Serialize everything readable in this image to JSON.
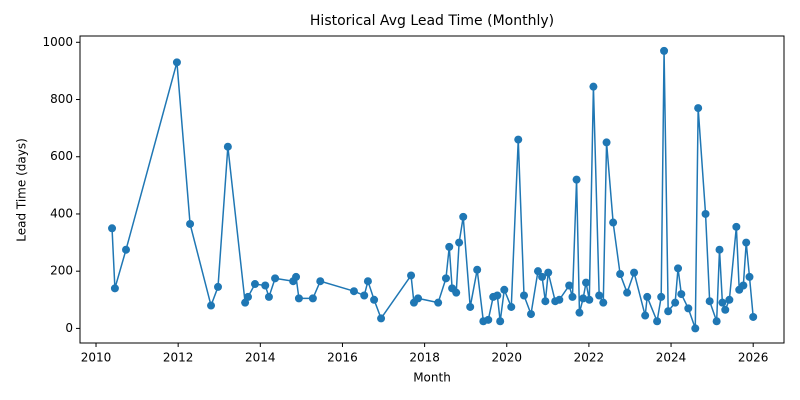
{
  "chart_data": {
    "type": "line",
    "title": "Historical Avg Lead Time (Monthly)",
    "x_label": "Month",
    "y_label": "Lead Time (days)",
    "color": "#1f77b4",
    "x": [
      2010.39,
      2010.46,
      2010.73,
      2011.97,
      2012.29,
      2012.8,
      2012.97,
      2013.21,
      2013.63,
      2013.7,
      2013.87,
      2014.12,
      2014.21,
      2014.36,
      2014.8,
      2014.87,
      2014.94,
      2015.28,
      2015.46,
      2016.28,
      2016.53,
      2016.62,
      2016.77,
      2016.94,
      2017.67,
      2017.74,
      2017.84,
      2018.33,
      2018.52,
      2018.6,
      2018.67,
      2018.77,
      2018.84,
      2018.94,
      2019.11,
      2019.28,
      2019.43,
      2019.55,
      2019.67,
      2019.77,
      2019.84,
      2019.94,
      2020.11,
      2020.28,
      2020.42,
      2020.59,
      2020.76,
      2020.86,
      2020.94,
      2021.01,
      2021.18,
      2021.28,
      2021.52,
      2021.6,
      2021.7,
      2021.77,
      2021.86,
      2021.93,
      2022.01,
      2022.11,
      2022.25,
      2022.35,
      2022.43,
      2022.59,
      2022.76,
      2022.93,
      2023.1,
      2023.37,
      2023.42,
      2023.66,
      2023.76,
      2023.83,
      2023.93,
      2024.1,
      2024.17,
      2024.25,
      2024.42,
      2024.59,
      2024.66,
      2024.84,
      2024.94,
      2025.11,
      2025.18,
      2025.25,
      2025.32,
      2025.42,
      2025.59,
      2025.66,
      2025.76,
      2025.83,
      2025.91,
      2026.0
    ],
    "values": [
      350,
      140,
      275,
      930,
      365,
      80,
      145,
      635,
      90,
      110,
      155,
      150,
      110,
      175,
      165,
      180,
      105,
      105,
      165,
      130,
      115,
      165,
      100,
      35,
      185,
      90,
      105,
      90,
      175,
      285,
      140,
      125,
      300,
      390,
      75,
      205,
      25,
      30,
      110,
      115,
      25,
      135,
      75,
      660,
      115,
      50,
      200,
      180,
      95,
      195,
      95,
      100,
      150,
      110,
      520,
      55,
      105,
      160,
      100,
      845,
      115,
      90,
      650,
      370,
      190,
      125,
      195,
      45,
      110,
      25,
      110,
      970,
      60,
      90,
      210,
      120,
      70,
      0,
      770,
      400,
      95,
      25,
      275,
      90,
      65,
      100,
      355,
      135,
      150,
      300,
      180,
      40
    ],
    "xlim": [
      2009.61,
      2026.75
    ],
    "ylim": [
      -51,
      1022
    ],
    "xticks": [
      2010,
      2012,
      2014,
      2016,
      2018,
      2020,
      2022,
      2024,
      2026
    ],
    "yticks": [
      0,
      200,
      400,
      600,
      800,
      1000
    ]
  }
}
